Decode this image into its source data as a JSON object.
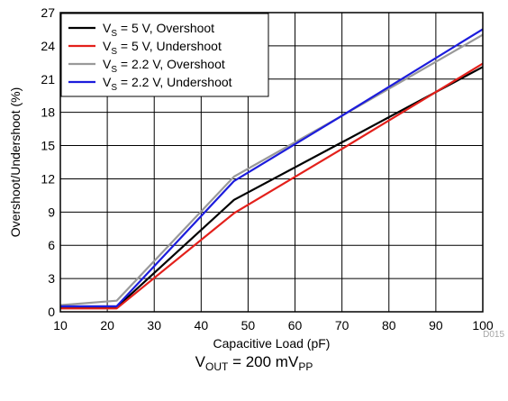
{
  "chart_data": {
    "type": "line",
    "xlabel": "Capacitive Load (pF)",
    "ylabel": "Overshoot/Undershoot (%)",
    "xlim": [
      10,
      100
    ],
    "ylim": [
      0,
      27
    ],
    "xticks": [
      10,
      20,
      30,
      40,
      50,
      60,
      70,
      80,
      90,
      100
    ],
    "yticks": [
      0,
      3,
      6,
      9,
      12,
      15,
      18,
      21,
      24,
      27
    ],
    "grid": true,
    "legend_position": "top-left",
    "code": "D015",
    "series": [
      {
        "name": "V_S = 5 V, Overshoot",
        "label_main": "V",
        "label_sub": "S",
        "label_rest": " = 5 V, Overshoot",
        "color": "#000000",
        "x": [
          10,
          22,
          47,
          70,
          100
        ],
        "y": [
          0.4,
          0.4,
          10.1,
          15.3,
          22.1
        ]
      },
      {
        "name": "V_S = 5 V, Undershoot",
        "label_main": "V",
        "label_sub": "S",
        "label_rest": " = 5 V, Undershoot",
        "color": "#e3201b",
        "x": [
          10,
          22,
          47,
          70,
          100
        ],
        "y": [
          0.3,
          0.3,
          8.9,
          14.7,
          22.4
        ]
      },
      {
        "name": "V_S = 2.2 V, Overshoot",
        "label_main": "V",
        "label_sub": "S",
        "label_rest": " = 2.2 V, Overshoot",
        "color": "#999999",
        "x": [
          10,
          22,
          47,
          70,
          100
        ],
        "y": [
          0.6,
          1.0,
          12.2,
          17.7,
          25.0
        ]
      },
      {
        "name": "V_S = 2.2 V, Undershoot",
        "label_main": "V",
        "label_sub": "S",
        "label_rest": " = 2.2 V, Undershoot",
        "color": "#1c1cdc",
        "x": [
          10,
          22,
          47,
          70,
          100
        ],
        "y": [
          0.5,
          0.5,
          11.8,
          17.7,
          25.5
        ]
      }
    ]
  },
  "caption": {
    "main": "V",
    "sub1": "OUT",
    "middle": " = 200 mV",
    "sub2": "PP"
  }
}
